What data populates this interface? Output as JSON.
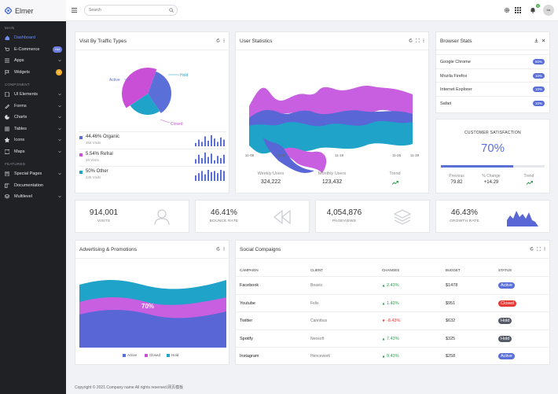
{
  "brand": "Elmer",
  "search_placeholder": "Search",
  "header": {
    "notif_count": "3",
    "avatar_text": "bla"
  },
  "sidebar": {
    "sections": [
      {
        "title": "MAIN",
        "items": [
          {
            "label": "Dashboard",
            "icon": "home-icon",
            "active": true
          },
          {
            "label": "E-Commerce",
            "icon": "cart-icon",
            "badge": "Hot",
            "badge_color": "#6d7fe0"
          },
          {
            "label": "Apps",
            "icon": "apps-icon",
            "chev": true
          },
          {
            "label": "Widgets",
            "icon": "flag-icon",
            "badge": "4",
            "badge_color": "#f4b02a"
          }
        ]
      },
      {
        "title": "COMPONENT",
        "items": [
          {
            "label": "UI Elements",
            "icon": "file-icon",
            "chev": true
          },
          {
            "label": "Forms",
            "icon": "edit-icon",
            "chev": true
          },
          {
            "label": "Charts",
            "icon": "chart-icon",
            "chev": true
          },
          {
            "label": "Tables",
            "icon": "table-icon",
            "chev": true
          },
          {
            "label": "Icons",
            "icon": "star-icon",
            "chev": true
          },
          {
            "label": "Maps",
            "icon": "map-icon",
            "chev": true
          }
        ]
      },
      {
        "title": "FEATURED",
        "items": [
          {
            "label": "Special Pages",
            "icon": "pages-icon",
            "chev": true
          },
          {
            "label": "Documentation",
            "icon": "book-icon"
          },
          {
            "label": "Multilevel",
            "icon": "layers-icon",
            "chev": true
          }
        ]
      }
    ]
  },
  "traffic": {
    "title": "Visit By Traffic Types",
    "pie_labels": {
      "active": "Active",
      "hold": "Hold",
      "closed": "Closed"
    },
    "rows": [
      {
        "pct": "44.46% Organic",
        "visits": "356 Visits",
        "color": "#5b6fd8",
        "bars": [
          3,
          6,
          4,
          9,
          5,
          10,
          7,
          4,
          8,
          6
        ]
      },
      {
        "pct": "5.54% Refral",
        "visits": "36 Visits",
        "color": "#c94fd6",
        "bars": [
          4,
          8,
          5,
          10,
          6,
          9,
          3,
          7,
          5,
          8
        ]
      },
      {
        "pct": "50% Other",
        "visits": "245 Visits",
        "color": "#1fa3c9",
        "bars": [
          5,
          7,
          9,
          6,
          10,
          8,
          9,
          7,
          10,
          9
        ]
      }
    ],
    "pie_data": [
      {
        "label": "Active",
        "value": 35,
        "color": "#5b6fd8"
      },
      {
        "label": "Hold",
        "value": 25,
        "color": "#1fa3c9"
      },
      {
        "label": "Closed",
        "value": 40,
        "color": "#c94fd6"
      }
    ]
  },
  "user_stats": {
    "title": "User Statistics",
    "x_labels": [
      "11-08",
      "11-12",
      "11-19",
      "11-26",
      "11-28"
    ],
    "metrics": [
      {
        "label": "Weekly Users",
        "value": "324,222"
      },
      {
        "label": "Monthly Users",
        "value": "123,432"
      },
      {
        "label": "Trend",
        "value": ""
      }
    ]
  },
  "browser": {
    "title": "Browser Stats",
    "rows": [
      {
        "name": "Google Chrome",
        "pct": "50%"
      },
      {
        "name": "Mozila Firefox",
        "pct": "10%"
      },
      {
        "name": "Internet Explorer",
        "pct": "10%"
      },
      {
        "name": "Safari",
        "pct": "10%"
      }
    ]
  },
  "satisfaction": {
    "title": "CUSTOMER SATISFACTION",
    "value": "70%",
    "progress": 0.7,
    "stats": [
      {
        "label": "Previous",
        "value": "79.82"
      },
      {
        "label": "% Change",
        "value": "+14.29"
      },
      {
        "label": "Trend",
        "value": ""
      }
    ]
  },
  "kpis": [
    {
      "value": "914,001",
      "label": "VISITS",
      "icon": "user-icon"
    },
    {
      "value": "46.41%",
      "label": "BOUNCE RATE",
      "icon": "rewind-icon"
    },
    {
      "value": "4,054,876",
      "label": "PAGEVIEWS",
      "icon": "layers-icon"
    },
    {
      "value": "46.43%",
      "label": "GROWTH RATE",
      "icon": "area-chart-icon"
    }
  ],
  "advertising": {
    "title": "Advertising & Promotions",
    "center_label": "70%",
    "legend": [
      {
        "label": "Active",
        "color": "#5b6fd8"
      },
      {
        "label": "Closed",
        "color": "#c94fd6"
      },
      {
        "label": "Hold",
        "color": "#1fa3c9"
      }
    ]
  },
  "social": {
    "title": "Social Compaigns",
    "headers": [
      "CAMPAIGN",
      "CLIENT",
      "CHANGES",
      "BUDGET",
      "STATUS"
    ],
    "rows": [
      {
        "campaign": "Facebook",
        "client": "Beavis",
        "change": "2.43%",
        "up": true,
        "budget": "$1478",
        "status": "Active",
        "status_color": "#5b6fd8"
      },
      {
        "campaign": "Youtube",
        "client": "Felix",
        "change": "1.43%",
        "up": true,
        "budget": "$951",
        "status": "Closed",
        "status_color": "#e53935"
      },
      {
        "campaign": "Twitter",
        "client": "Cannibus",
        "change": "-8.43%",
        "up": false,
        "budget": "$632",
        "status": "Hold",
        "status_color": "#555b66"
      },
      {
        "campaign": "Spotify",
        "client": "Neosoft",
        "change": "7.43%",
        "up": true,
        "budget": "$325",
        "status": "Hold",
        "status_color": "#555b66"
      },
      {
        "campaign": "Instagram",
        "client": "Hencework",
        "change": "9.43%",
        "up": true,
        "budget": "$258",
        "status": "Active",
        "status_color": "#5b6fd8"
      }
    ]
  },
  "footer": "Copyright © 2021.Company name All rights reserved.网页模板"
}
